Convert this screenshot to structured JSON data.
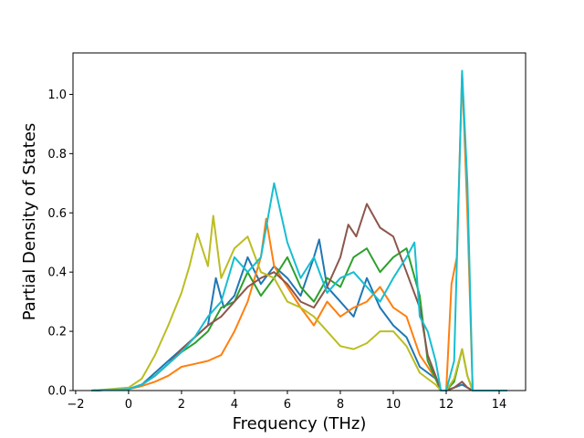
{
  "chart_data": {
    "type": "line",
    "title": "",
    "xlabel": "Frequency (THz)",
    "ylabel": "Partial Density of States",
    "xlim": [
      -2.1,
      15.0
    ],
    "ylim": [
      0.0,
      1.14
    ],
    "xticks": [
      -2,
      0,
      2,
      4,
      6,
      8,
      10,
      12,
      14
    ],
    "xtick_labels": [
      "−2",
      "0",
      "2",
      "4",
      "6",
      "8",
      "10",
      "12",
      "14"
    ],
    "yticks": [
      0.0,
      0.2,
      0.4,
      0.6,
      0.8,
      1.0
    ],
    "ytick_labels": [
      "0.0",
      "0.2",
      "0.4",
      "0.6",
      "0.8",
      "1.0"
    ],
    "grid": false,
    "legend": "none",
    "series": [
      {
        "color": "#1f77b4",
        "x": [
          -1.4,
          0,
          0.5,
          1,
          1.5,
          2,
          2.5,
          3,
          3.3,
          3.6,
          4,
          4.5,
          5,
          5.5,
          6,
          6.5,
          7,
          7.2,
          7.5,
          8,
          8.5,
          9,
          9.5,
          10,
          10.5,
          11,
          11.3,
          11.6,
          11.8,
          12,
          12.3,
          12.6,
          12.8,
          13,
          13.5,
          14.3
        ],
        "y": [
          0,
          0.005,
          0.02,
          0.06,
          0.1,
          0.14,
          0.18,
          0.22,
          0.38,
          0.28,
          0.32,
          0.45,
          0.36,
          0.42,
          0.38,
          0.32,
          0.45,
          0.51,
          0.35,
          0.3,
          0.25,
          0.38,
          0.28,
          0.22,
          0.18,
          0.08,
          0.06,
          0.04,
          0.0,
          0.0,
          0.01,
          0.02,
          0.01,
          0.0,
          0.0,
          0.0
        ]
      },
      {
        "color": "#ff7f0e",
        "x": [
          -1.4,
          0,
          0.5,
          1,
          1.5,
          2,
          2.5,
          3,
          3.5,
          4,
          4.5,
          5,
          5.2,
          5.5,
          6,
          6.5,
          7,
          7.5,
          8,
          8.5,
          9,
          9.5,
          10,
          10.5,
          11,
          11.3,
          11.6,
          11.8,
          12,
          12.2,
          12.4,
          12.6,
          12.8,
          13,
          13.5,
          14.3
        ],
        "y": [
          0,
          0.005,
          0.015,
          0.03,
          0.05,
          0.08,
          0.09,
          0.1,
          0.12,
          0.2,
          0.3,
          0.45,
          0.58,
          0.42,
          0.35,
          0.28,
          0.22,
          0.3,
          0.25,
          0.28,
          0.3,
          0.35,
          0.28,
          0.25,
          0.12,
          0.08,
          0.04,
          0.0,
          0.0,
          0.36,
          0.45,
          1.07,
          0.6,
          0.0,
          0.0,
          0.0
        ]
      },
      {
        "color": "#2ca02c",
        "x": [
          -1.4,
          0,
          0.5,
          1,
          1.5,
          2,
          2.5,
          3,
          3.5,
          4,
          4.5,
          5,
          5.5,
          6,
          6.5,
          7,
          7.5,
          8,
          8.5,
          9,
          9.5,
          10,
          10.5,
          11,
          11.3,
          11.6,
          11.8,
          12,
          12.3,
          12.6,
          12.8,
          13,
          13.5,
          14.3
        ],
        "y": [
          0,
          0.005,
          0.02,
          0.05,
          0.09,
          0.13,
          0.16,
          0.2,
          0.28,
          0.3,
          0.4,
          0.32,
          0.38,
          0.45,
          0.35,
          0.3,
          0.38,
          0.35,
          0.45,
          0.48,
          0.4,
          0.45,
          0.48,
          0.32,
          0.1,
          0.04,
          0.0,
          0.0,
          0.03,
          0.14,
          0.05,
          0.0,
          0.0,
          0.0
        ]
      },
      {
        "color": "#8c564b",
        "x": [
          -1.4,
          0,
          0.5,
          1,
          1.5,
          2,
          2.5,
          3,
          3.5,
          4,
          4.5,
          5,
          5.5,
          6,
          6.5,
          7,
          7.5,
          8,
          8.3,
          8.6,
          9,
          9.5,
          10,
          10.5,
          11,
          11.3,
          11.6,
          11.8,
          12,
          12.3,
          12.6,
          12.8,
          13,
          13.5,
          14.3
        ],
        "y": [
          0,
          0.005,
          0.02,
          0.05,
          0.09,
          0.14,
          0.18,
          0.22,
          0.25,
          0.3,
          0.35,
          0.38,
          0.4,
          0.36,
          0.3,
          0.28,
          0.35,
          0.45,
          0.56,
          0.52,
          0.63,
          0.55,
          0.52,
          0.4,
          0.28,
          0.12,
          0.05,
          0.0,
          0.0,
          0.01,
          0.03,
          0.01,
          0.0,
          0.0,
          0.0
        ]
      },
      {
        "color": "#bcbd22",
        "x": [
          -1.4,
          0,
          0.5,
          1,
          1.5,
          2,
          2.3,
          2.6,
          3,
          3.2,
          3.5,
          4,
          4.5,
          5,
          5.5,
          6,
          6.5,
          7,
          7.5,
          8,
          8.5,
          9,
          9.5,
          10,
          10.5,
          11,
          11.3,
          11.6,
          11.8,
          12,
          12.3,
          12.6,
          12.8,
          13,
          13.5,
          14.3
        ],
        "y": [
          0,
          0.01,
          0.04,
          0.12,
          0.22,
          0.33,
          0.42,
          0.53,
          0.42,
          0.59,
          0.38,
          0.48,
          0.52,
          0.4,
          0.38,
          0.3,
          0.28,
          0.25,
          0.2,
          0.15,
          0.14,
          0.16,
          0.2,
          0.2,
          0.15,
          0.06,
          0.04,
          0.02,
          0.0,
          0.0,
          0.04,
          0.14,
          0.05,
          0.0,
          0.0,
          0.0
        ]
      },
      {
        "color": "#17becf",
        "x": [
          -1.4,
          0,
          0.5,
          1,
          1.5,
          2,
          2.5,
          3,
          3.5,
          4,
          4.5,
          5,
          5.5,
          6,
          6.5,
          7,
          7.5,
          8,
          8.5,
          9,
          9.5,
          10,
          10.5,
          10.8,
          11,
          11.3,
          11.6,
          11.8,
          12,
          12.3,
          12.6,
          12.8,
          13,
          13.5,
          14.3
        ],
        "y": [
          0,
          0.005,
          0.02,
          0.05,
          0.09,
          0.13,
          0.18,
          0.25,
          0.3,
          0.45,
          0.4,
          0.45,
          0.7,
          0.5,
          0.38,
          0.45,
          0.33,
          0.38,
          0.4,
          0.35,
          0.3,
          0.38,
          0.45,
          0.5,
          0.25,
          0.2,
          0.1,
          0.0,
          0.0,
          0.1,
          1.08,
          0.7,
          0.0,
          0.0,
          0.0
        ]
      }
    ]
  }
}
